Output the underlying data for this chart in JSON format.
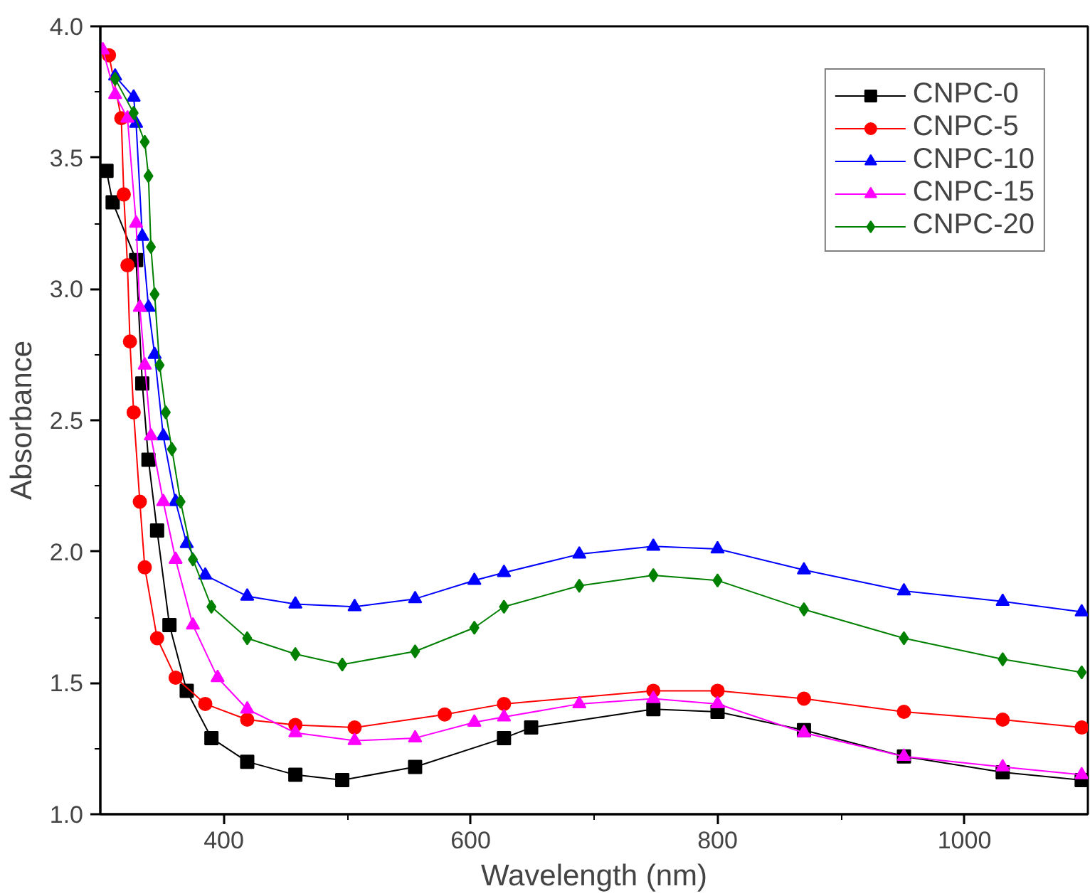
{
  "chart_data": {
    "type": "line",
    "xlabel": "Wavelength (nm)",
    "ylabel": "Absorbance",
    "xlim": [
      300,
      1100
    ],
    "ylim": [
      1.0,
      4.0
    ],
    "xticks": [
      400,
      {
        "value": 500,
        "label": null
      },
      600,
      {
        "value": 700,
        "label": null
      },
      800,
      {
        "value": 900,
        "label": null
      },
      1000
    ],
    "yticks": [
      {
        "value": 1,
        "label": "1.0"
      },
      {
        "value": 1.25,
        "label": null
      },
      1.5,
      {
        "value": 1.75,
        "label": null
      },
      {
        "value": 2,
        "label": "2.0"
      },
      {
        "value": 2.25,
        "label": null
      },
      2.5,
      {
        "value": 2.75,
        "label": null
      },
      {
        "value": 3,
        "label": "3.0"
      },
      {
        "value": 3.25,
        "label": null
      },
      3.5,
      {
        "value": 3.75,
        "label": null
      },
      {
        "value": 4,
        "label": "4.0"
      }
    ],
    "grid": false,
    "legend": "top right",
    "line_style": "solid",
    "series": [
      {
        "name": "CNPC-0",
        "color": "#000000",
        "marker": "square",
        "x": [
          305,
          310,
          329,
          334,
          339,
          346,
          356,
          370,
          390,
          419,
          458,
          496,
          555,
          627,
          649,
          748,
          800,
          870,
          951,
          1031,
          1095
        ],
        "values": [
          3.45,
          3.33,
          3.11,
          2.64,
          2.35,
          2.08,
          1.72,
          1.47,
          1.29,
          1.2,
          1.15,
          1.13,
          1.18,
          1.29,
          1.33,
          1.4,
          1.39,
          1.32,
          1.22,
          1.16,
          1.13
        ]
      },
      {
        "name": "CNPC-5",
        "color": "#ff0000",
        "marker": "circle",
        "x": [
          307,
          317,
          319,
          322,
          324,
          327,
          332,
          336,
          346,
          361,
          385,
          419,
          458,
          506,
          579,
          627,
          748,
          800,
          870,
          951,
          1031,
          1095
        ],
        "values": [
          3.89,
          3.65,
          3.36,
          3.09,
          2.8,
          2.53,
          2.19,
          1.94,
          1.67,
          1.52,
          1.42,
          1.36,
          1.34,
          1.33,
          1.38,
          1.42,
          1.47,
          1.47,
          1.44,
          1.39,
          1.36,
          1.33
        ]
      },
      {
        "name": "CNPC-10",
        "color": "#0000ff",
        "marker": "triangle",
        "x": [
          312,
          327,
          329,
          334,
          339,
          344,
          351,
          361,
          370,
          385,
          419,
          458,
          506,
          555,
          603,
          627,
          688,
          748,
          800,
          870,
          951,
          1031,
          1095
        ],
        "values": [
          3.81,
          3.73,
          3.63,
          3.2,
          2.93,
          2.75,
          2.44,
          2.19,
          2.03,
          1.91,
          1.83,
          1.8,
          1.79,
          1.82,
          1.89,
          1.92,
          1.99,
          2.02,
          2.01,
          1.93,
          1.85,
          1.81,
          1.77
        ]
      },
      {
        "name": "CNPC-15",
        "color": "#ff00ff",
        "marker": "triangle",
        "x": [
          302,
          312,
          322,
          329,
          332,
          336,
          341,
          351,
          361,
          375,
          395,
          419,
          458,
          506,
          555,
          603,
          627,
          688,
          748,
          800,
          870,
          951,
          1031,
          1095
        ],
        "values": [
          3.91,
          3.74,
          3.65,
          3.25,
          2.93,
          2.71,
          2.44,
          2.19,
          1.97,
          1.72,
          1.52,
          1.4,
          1.31,
          1.28,
          1.29,
          1.35,
          1.37,
          1.42,
          1.44,
          1.42,
          1.31,
          1.22,
          1.18,
          1.15
        ]
      },
      {
        "name": "CNPC-20",
        "color": "#008000",
        "marker": "diamond",
        "x": [
          312,
          327,
          336,
          339,
          341,
          344,
          348,
          353,
          358,
          365,
          375,
          390,
          419,
          458,
          496,
          555,
          603,
          627,
          688,
          748,
          800,
          870,
          951,
          1031,
          1095
        ],
        "values": [
          3.8,
          3.67,
          3.56,
          3.43,
          3.16,
          2.98,
          2.71,
          2.53,
          2.39,
          2.19,
          1.97,
          1.79,
          1.67,
          1.61,
          1.57,
          1.62,
          1.71,
          1.79,
          1.87,
          1.91,
          1.89,
          1.78,
          1.67,
          1.59,
          1.54
        ]
      }
    ]
  }
}
